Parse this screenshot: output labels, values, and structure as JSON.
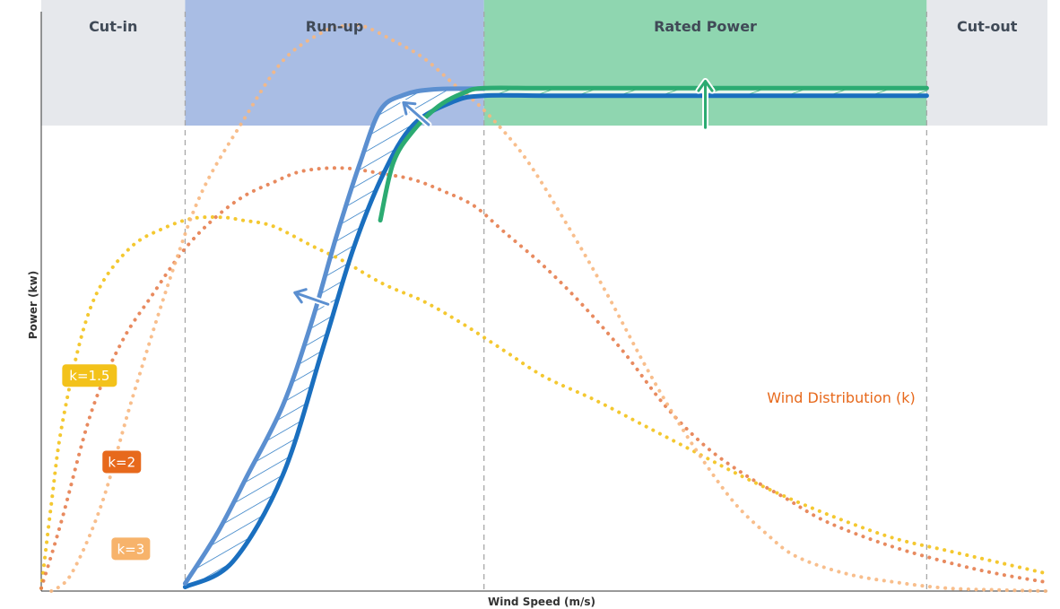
{
  "chart_data": {
    "type": "line",
    "title": "",
    "xlabel": "Wind Speed (m/s)",
    "ylabel": "Power (kw)",
    "xlim": [
      0,
      100
    ],
    "ylim": [
      0,
      100
    ],
    "grid": false,
    "regions": [
      {
        "name": "Cut-in",
        "x_start": 0,
        "x_end": 14.3,
        "color": "#e6e8ec"
      },
      {
        "name": "Run-up",
        "x_start": 14.3,
        "x_end": 44,
        "color": "#a9bde4"
      },
      {
        "name": "Rated Power",
        "x_start": 44,
        "x_end": 88,
        "color": "#8fd6b0"
      },
      {
        "name": "Cut-out",
        "x_start": 88,
        "x_end": 100,
        "color": "#e6e8ec"
      }
    ],
    "boundaries_x": [
      14.3,
      44,
      88
    ],
    "series": [
      {
        "role": "baseline-power-curve",
        "color": "#1a6fbf",
        "points": [
          [
            14.3,
            0.7
          ],
          [
            19,
            5
          ],
          [
            24,
            20
          ],
          [
            28,
            42
          ],
          [
            31,
            59
          ],
          [
            34,
            72
          ],
          [
            37,
            80.5
          ],
          [
            41,
            84.5
          ],
          [
            44,
            85.5
          ],
          [
            50,
            85.5
          ],
          [
            60,
            85.5
          ],
          [
            70,
            85.5
          ],
          [
            80,
            85.5
          ],
          [
            88,
            85.5
          ]
        ]
      },
      {
        "role": "shifted-power-curve",
        "color": "#5b8fd0",
        "points": [
          [
            14.3,
            1.3
          ],
          [
            17.5,
            10
          ],
          [
            20.5,
            20
          ],
          [
            24,
            32
          ],
          [
            26.8,
            46
          ],
          [
            29.3,
            61
          ],
          [
            31.7,
            74
          ],
          [
            33.7,
            83
          ],
          [
            36,
            85.6
          ],
          [
            39,
            86.6
          ],
          [
            44,
            86.7
          ]
        ]
      },
      {
        "role": "raised-rated-curve",
        "color": "#2cab72",
        "points": [
          [
            33.7,
            64
          ],
          [
            35,
            74
          ],
          [
            37,
            79.5
          ],
          [
            39.5,
            83.7
          ],
          [
            42,
            86
          ],
          [
            44,
            86.8
          ],
          [
            50,
            86.8
          ],
          [
            60,
            86.8
          ],
          [
            70,
            86.8
          ],
          [
            80,
            86.8
          ],
          [
            88,
            86.8
          ]
        ]
      },
      {
        "name": "k=1.5",
        "color": "#f3c21a",
        "dotted": true,
        "points": [
          [
            0,
            0.5
          ],
          [
            1,
            15
          ],
          [
            2,
            28
          ],
          [
            4,
            44
          ],
          [
            6,
            53
          ],
          [
            9,
            59.5
          ],
          [
            12,
            62.5
          ],
          [
            15,
            64.3
          ],
          [
            18,
            64.5
          ],
          [
            20,
            64
          ],
          [
            23,
            63
          ],
          [
            27,
            59.5
          ],
          [
            30,
            57
          ],
          [
            34,
            53
          ],
          [
            38,
            50
          ],
          [
            42,
            46
          ],
          [
            46,
            41.5
          ],
          [
            50,
            37
          ],
          [
            55,
            33
          ],
          [
            60,
            28.5
          ],
          [
            65,
            24
          ],
          [
            70,
            19.5
          ],
          [
            75,
            15.5
          ],
          [
            80,
            12
          ],
          [
            85,
            9
          ],
          [
            90,
            7
          ],
          [
            95,
            5
          ],
          [
            100,
            3
          ]
        ]
      },
      {
        "name": "k=2",
        "color": "#e67d4e",
        "dotted": true,
        "points": [
          [
            0,
            0.5
          ],
          [
            2,
            12
          ],
          [
            5,
            31
          ],
          [
            8,
            43
          ],
          [
            11,
            51
          ],
          [
            14,
            58.5
          ],
          [
            17,
            64
          ],
          [
            20,
            68
          ],
          [
            23,
            70.5
          ],
          [
            26,
            72.5
          ],
          [
            30,
            73
          ],
          [
            34,
            72
          ],
          [
            37,
            71
          ],
          [
            40,
            69
          ],
          [
            43,
            66.5
          ],
          [
            46,
            62
          ],
          [
            50,
            56
          ],
          [
            54,
            49
          ],
          [
            58,
            41
          ],
          [
            62,
            32
          ],
          [
            66,
            25
          ],
          [
            70,
            20
          ],
          [
            74,
            16
          ],
          [
            78,
            12
          ],
          [
            84,
            8
          ],
          [
            90,
            5
          ],
          [
            95,
            3
          ],
          [
            100,
            1.5
          ]
        ]
      },
      {
        "name": "k=3",
        "color": "#f7b77f",
        "dotted": true,
        "points": [
          [
            1,
            0
          ],
          [
            3,
            3
          ],
          [
            6,
            15
          ],
          [
            9,
            33
          ],
          [
            13,
            55
          ],
          [
            16,
            69
          ],
          [
            20,
            81
          ],
          [
            24,
            91.5
          ],
          [
            28,
            96.5
          ],
          [
            30,
            97.5
          ],
          [
            32,
            97.5
          ],
          [
            35,
            95
          ],
          [
            38,
            92
          ],
          [
            41,
            87.5
          ],
          [
            44,
            83
          ],
          [
            48,
            75
          ],
          [
            52,
            64
          ],
          [
            56,
            52
          ],
          [
            60,
            39
          ],
          [
            63,
            30
          ],
          [
            66,
            22
          ],
          [
            69,
            15
          ],
          [
            72,
            10
          ],
          [
            75,
            6
          ],
          [
            80,
            3
          ],
          [
            85,
            1.5
          ],
          [
            90,
            0.5
          ],
          [
            95,
            0.2
          ],
          [
            100,
            0
          ]
        ]
      }
    ],
    "k_labels": [
      {
        "text": "k=1.5",
        "color": "#f3c21a",
        "x": 4.8,
        "y": 37.2
      },
      {
        "text": "k=2",
        "color": "#e7691c",
        "x": 8.0,
        "y": 22.3
      },
      {
        "text": "k=3",
        "color": "#f7b36b",
        "x": 8.9,
        "y": 7.3
      }
    ],
    "annotation": {
      "text": "Wind Distribution (k)",
      "color": "#e7691c",
      "x": 79.5,
      "y": 32.5
    },
    "arrows": [
      {
        "color": "#5b8fd0",
        "from": [
          28.5,
          49.5
        ],
        "to": [
          25.2,
          51.5
        ]
      },
      {
        "color": "#5b8fd0",
        "from": [
          38.5,
          80.5
        ],
        "to": [
          36.0,
          84.3
        ]
      },
      {
        "color": "#2cab72",
        "from": [
          66.0,
          80.0
        ],
        "to": [
          66.0,
          88.0
        ]
      }
    ]
  }
}
